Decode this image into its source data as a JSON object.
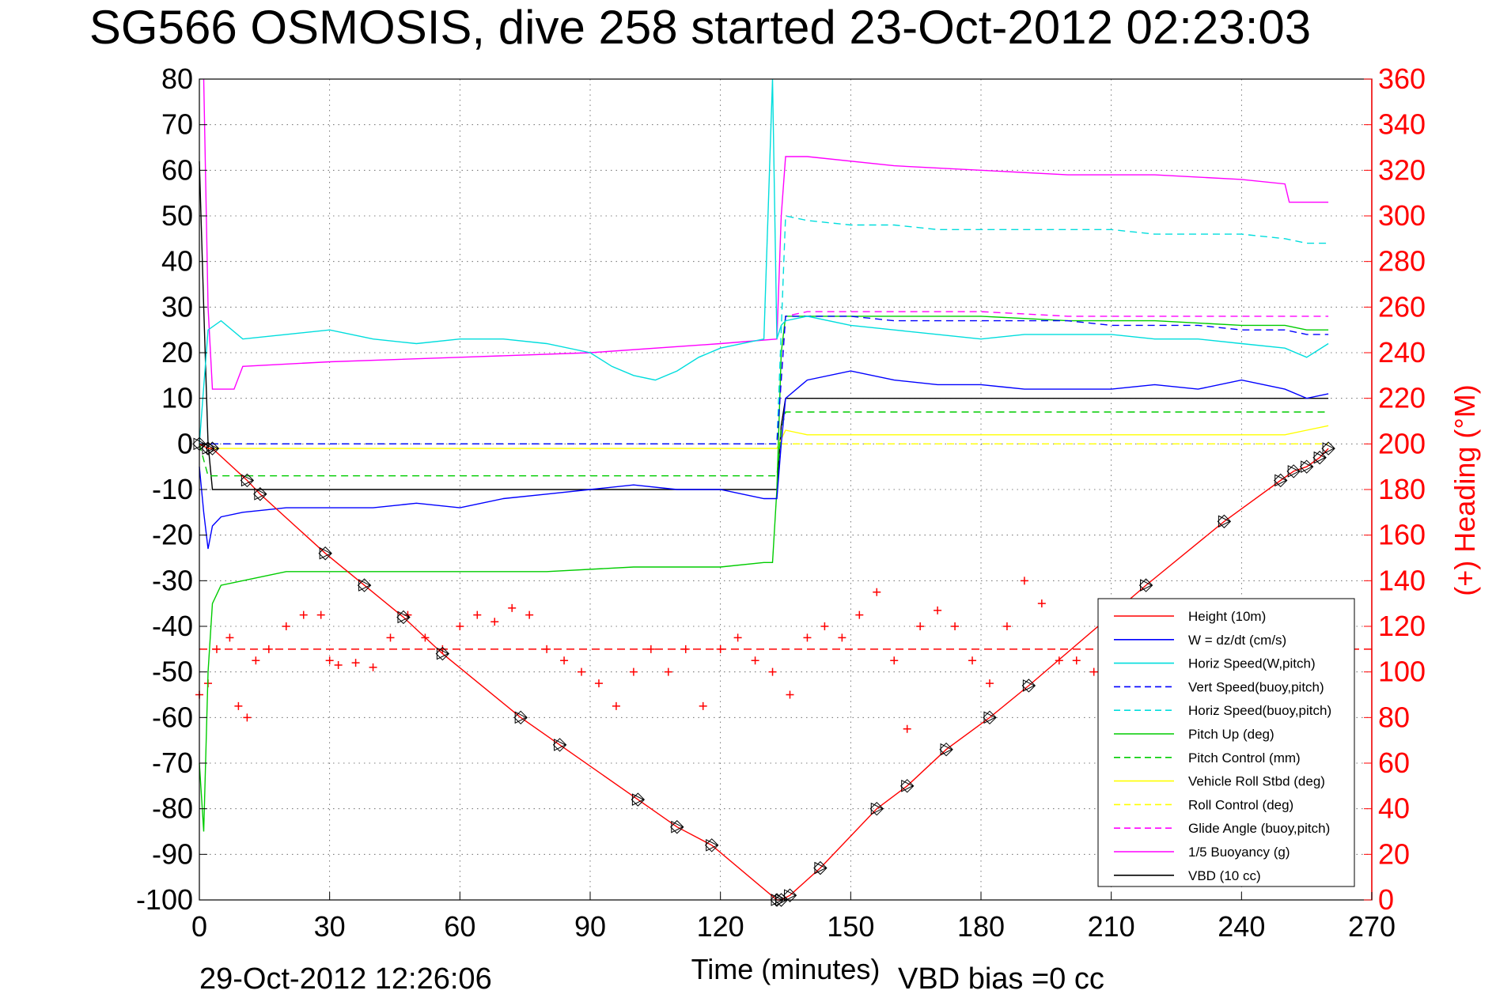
{
  "chart_data": {
    "type": "line",
    "title": "SG566 OSMOSIS, dive 258 started 23-Oct-2012 02:23:03",
    "xlabel": "Time (minutes)",
    "ylabel_right": "(+) Heading (°M)",
    "footer_left": "29-Oct-2012 12:26:06",
    "footer_right": "VBD bias =0 cc",
    "xlim": [
      0,
      270
    ],
    "ylim": [
      -100,
      80
    ],
    "ylim_right": [
      0,
      360
    ],
    "x_ticks": [
      0,
      30,
      60,
      90,
      120,
      150,
      180,
      210,
      240,
      270
    ],
    "y_ticks": [
      80,
      70,
      60,
      50,
      40,
      30,
      20,
      10,
      0,
      -10,
      -20,
      -30,
      -40,
      -50,
      -60,
      -70,
      -80,
      -90,
      -100
    ],
    "y_right_ticks": [
      360,
      340,
      320,
      300,
      280,
      260,
      240,
      220,
      200,
      180,
      160,
      140,
      120,
      100,
      80,
      60,
      40,
      20,
      0
    ],
    "grid": true,
    "legend_position": "bottom-right",
    "series": [
      {
        "name": "Height (10m)",
        "color": "#ff0000",
        "style": "solid",
        "marker": "diamond-triangle",
        "x": [
          0,
          2,
          3,
          11,
          14,
          29,
          38,
          47,
          56,
          74,
          83,
          101,
          110,
          118,
          133,
          134,
          136,
          143,
          156,
          163,
          172,
          182,
          191,
          218,
          236,
          249,
          252,
          255,
          258,
          260
        ],
        "y": [
          0,
          -1,
          -1,
          -8,
          -11,
          -24,
          -31,
          -38,
          -46,
          -60,
          -66,
          -78,
          -84,
          -88,
          -100,
          -100,
          -99,
          -93,
          -80,
          -75,
          -67,
          -60,
          -53,
          -31,
          -17,
          -8,
          -6,
          -5,
          -3,
          -1
        ]
      },
      {
        "name": "W = dz/dt (cm/s)",
        "color": "#0000ff",
        "style": "solid",
        "x": [
          0,
          1,
          2,
          3,
          5,
          10,
          20,
          30,
          40,
          50,
          60,
          70,
          80,
          90,
          100,
          110,
          120,
          130,
          133,
          134,
          135,
          140,
          150,
          160,
          170,
          180,
          190,
          200,
          210,
          220,
          230,
          240,
          250,
          255,
          260
        ],
        "y": [
          -5,
          -15,
          -23,
          -18,
          -16,
          -15,
          -14,
          -14,
          -14,
          -13,
          -14,
          -12,
          -11,
          -10,
          -9,
          -10,
          -10,
          -12,
          -12,
          0,
          10,
          14,
          16,
          14,
          13,
          13,
          12,
          12,
          12,
          13,
          12,
          14,
          12,
          10,
          11
        ]
      },
      {
        "name": "Horiz Speed(W,pitch)",
        "color": "#00dddd",
        "style": "solid",
        "x": [
          0,
          2,
          5,
          10,
          20,
          30,
          40,
          50,
          60,
          70,
          80,
          90,
          95,
          100,
          105,
          110,
          115,
          120,
          130,
          132,
          133,
          134,
          135,
          140,
          150,
          160,
          170,
          180,
          190,
          200,
          210,
          220,
          230,
          240,
          250,
          255,
          260
        ],
        "y": [
          0,
          25,
          27,
          23,
          24,
          25,
          23,
          22,
          23,
          23,
          22,
          20,
          17,
          15,
          14,
          16,
          19,
          21,
          23,
          80,
          23,
          26,
          27,
          28,
          26,
          25,
          24,
          23,
          24,
          24,
          24,
          23,
          23,
          22,
          21,
          19,
          22
        ]
      },
      {
        "name": "Vert Speed(buoy,pitch)",
        "color": "#0000ff",
        "style": "dashed",
        "x": [
          0,
          133,
          135,
          140,
          150,
          160,
          170,
          180,
          190,
          200,
          210,
          220,
          230,
          240,
          250,
          255,
          260
        ],
        "y": [
          0,
          0,
          28,
          28,
          28,
          27,
          27,
          27,
          27,
          27,
          26,
          26,
          26,
          25,
          25,
          24,
          24
        ]
      },
      {
        "name": "Horiz Speed(buoy,pitch)",
        "color": "#00dddd",
        "style": "dashed",
        "x": [
          0,
          133,
          135,
          140,
          150,
          160,
          170,
          180,
          190,
          200,
          210,
          220,
          230,
          240,
          250,
          255,
          260
        ],
        "y": [
          0,
          0,
          50,
          49,
          48,
          48,
          47,
          47,
          47,
          47,
          47,
          46,
          46,
          46,
          45,
          44,
          44
        ]
      },
      {
        "name": "Pitch Up (deg)",
        "color": "#00cc00",
        "style": "solid",
        "x": [
          0,
          1,
          2,
          3,
          5,
          10,
          20,
          30,
          40,
          60,
          80,
          100,
          120,
          130,
          132,
          133,
          134,
          135,
          140,
          160,
          180,
          200,
          220,
          240,
          250,
          255,
          260
        ],
        "y": [
          -70,
          -85,
          -50,
          -35,
          -31,
          -30,
          -28,
          -28,
          -28,
          -28,
          -28,
          -27,
          -27,
          -26,
          -26,
          -10,
          20,
          28,
          28,
          28,
          28,
          27,
          27,
          26,
          26,
          25,
          25
        ]
      },
      {
        "name": "Pitch Control (mm)",
        "color": "#00cc00",
        "style": "dashed",
        "x": [
          0,
          2,
          133,
          134,
          135,
          260
        ],
        "y": [
          0,
          -7,
          -7,
          3,
          7,
          7
        ]
      },
      {
        "name": "Vehicle Roll Stbd (deg)",
        "color": "#ffff00",
        "style": "solid",
        "x": [
          0,
          2,
          10,
          30,
          40,
          60,
          80,
          100,
          120,
          133,
          135,
          140,
          160,
          180,
          200,
          220,
          240,
          250,
          255,
          260
        ],
        "y": [
          0,
          -1,
          -1,
          -1,
          -1,
          -1,
          -1,
          -1,
          -1,
          -1,
          3,
          2,
          2,
          2,
          2,
          2,
          2,
          2,
          3,
          4
        ]
      },
      {
        "name": "Roll Control (deg)",
        "color": "#ffff00",
        "style": "dashed",
        "x": [
          0,
          133,
          134,
          260
        ],
        "y": [
          0,
          0,
          0,
          0
        ]
      },
      {
        "name": "Glide Angle (buoy,pitch)",
        "color": "#ff00ff",
        "style": "dashed",
        "x": [
          0,
          133,
          135,
          140,
          160,
          180,
          200,
          220,
          240,
          255,
          260
        ],
        "y": [
          0,
          0,
          28,
          29,
          29,
          29,
          28,
          28,
          28,
          28,
          28
        ]
      },
      {
        "name": "1/5 Buoyancy (g)",
        "color": "#ff00ff",
        "style": "solid",
        "x": [
          1,
          2,
          3,
          8,
          10,
          30,
          60,
          90,
          120,
          133,
          134,
          135,
          140,
          160,
          180,
          200,
          220,
          240,
          250,
          251,
          260
        ],
        "y": [
          80,
          30,
          12,
          12,
          17,
          18,
          19,
          20,
          22,
          23,
          50,
          63,
          63,
          61,
          60,
          59,
          59,
          58,
          57,
          53,
          53
        ]
      },
      {
        "name": "VBD (10 cc)",
        "color": "#000000",
        "style": "solid",
        "x": [
          0,
          1,
          2,
          3,
          133,
          134,
          135,
          260
        ],
        "y": [
          62,
          30,
          0,
          -10,
          -10,
          4,
          10,
          10
        ]
      }
    ],
    "heading_series": {
      "name": "Heading (°M)",
      "color": "#ff0000",
      "marker": "plus",
      "axis": "right",
      "target": 110,
      "x": [
        0,
        2,
        4,
        7,
        9,
        11,
        13,
        16,
        20,
        24,
        28,
        30,
        32,
        36,
        40,
        44,
        48,
        52,
        56,
        60,
        64,
        68,
        72,
        76,
        80,
        84,
        88,
        92,
        96,
        100,
        104,
        108,
        112,
        116,
        120,
        124,
        128,
        132,
        136,
        140,
        144,
        148,
        152,
        156,
        160,
        163,
        166,
        170,
        174,
        178,
        182,
        186,
        190,
        194,
        198,
        202,
        206,
        210
      ],
      "y": [
        90,
        95,
        110,
        115,
        85,
        80,
        105,
        110,
        120,
        125,
        125,
        105,
        103,
        104,
        102,
        115,
        125,
        115,
        110,
        120,
        125,
        122,
        128,
        125,
        110,
        105,
        100,
        95,
        85,
        100,
        110,
        100,
        110,
        85,
        110,
        115,
        105,
        100,
        90,
        115,
        120,
        115,
        125,
        135,
        105,
        75,
        120,
        127,
        120,
        105,
        95,
        120,
        140,
        130,
        105,
        105,
        100,
        102
      ]
    }
  },
  "legend": {
    "entries": [
      {
        "label": "Height (10m)",
        "color": "#ff0000",
        "style": "solid"
      },
      {
        "label": "W = dz/dt (cm/s)",
        "color": "#0000ff",
        "style": "solid"
      },
      {
        "label": "Horiz Speed(W,pitch)",
        "color": "#00dddd",
        "style": "solid"
      },
      {
        "label": "Vert Speed(buoy,pitch)",
        "color": "#0000ff",
        "style": "dashed"
      },
      {
        "label": "Horiz Speed(buoy,pitch)",
        "color": "#00dddd",
        "style": "dashed"
      },
      {
        "label": "Pitch Up (deg)",
        "color": "#00cc00",
        "style": "solid"
      },
      {
        "label": "Pitch Control (mm)",
        "color": "#00cc00",
        "style": "dashed"
      },
      {
        "label": "Vehicle Roll Stbd (deg)",
        "color": "#ffff00",
        "style": "solid"
      },
      {
        "label": "Roll Control (deg)",
        "color": "#ffff00",
        "style": "dashed"
      },
      {
        "label": "Glide Angle (buoy,pitch)",
        "color": "#ff00ff",
        "style": "dashed"
      },
      {
        "label": "1/5 Buoyancy (g)",
        "color": "#ff00ff",
        "style": "solid"
      },
      {
        "label": "VBD (10 cc)",
        "color": "#000000",
        "style": "solid"
      }
    ]
  }
}
